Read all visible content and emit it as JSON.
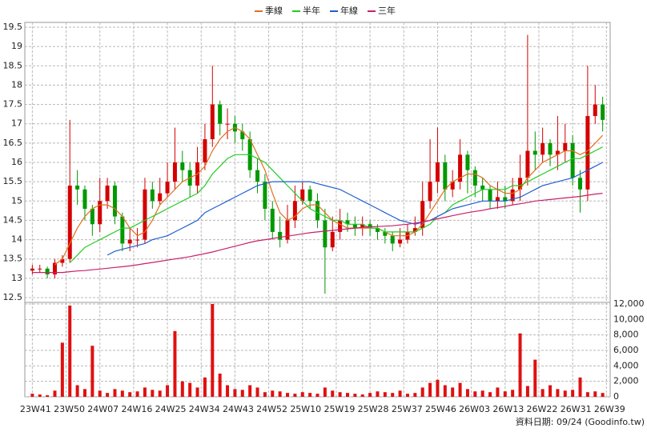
{
  "chart_data": [
    {
      "type": "candlestick",
      "x": [
        0,
        2,
        4,
        6,
        8,
        10,
        12,
        14,
        16,
        18,
        20,
        22,
        24,
        26,
        28,
        30,
        32,
        34,
        36,
        38,
        40,
        42,
        44,
        46,
        48,
        50,
        52,
        54,
        56,
        58,
        60,
        62,
        64,
        66,
        68,
        70,
        72,
        74,
        76,
        78,
        80,
        82,
        84,
        86,
        88,
        90,
        92,
        94,
        96,
        98,
        100,
        102,
        104,
        106,
        108,
        110,
        112,
        114,
        116,
        118,
        120,
        122,
        124,
        126,
        128,
        130,
        132,
        134,
        136,
        138,
        140,
        142,
        144,
        146,
        148,
        150,
        152
      ],
      "open": [
        13.2,
        13.25,
        13.25,
        13.1,
        13.4,
        13.5,
        15.4,
        15.3,
        14.8,
        14.4,
        15.0,
        15.4,
        14.6,
        13.9,
        14.0,
        14.0,
        15.3,
        15.0,
        15.2,
        15.5,
        16.0,
        15.8,
        15.4,
        16.0,
        16.6,
        17.5,
        17.0,
        17.0,
        16.8,
        16.6,
        15.8,
        15.5,
        14.8,
        14.2,
        14.0,
        14.5,
        15.0,
        15.3,
        15.0,
        14.5,
        13.8,
        14.2,
        14.5,
        14.4,
        14.3,
        14.4,
        14.3,
        14.2,
        14.1,
        13.9,
        14.0,
        14.2,
        14.3,
        15.0,
        15.5,
        16.0,
        15.3,
        15.5,
        16.2,
        15.8,
        15.4,
        15.3,
        15.0,
        15.1,
        15.0,
        15.3,
        15.6,
        16.3,
        16.2,
        16.5,
        16.2,
        16.3,
        16.5,
        15.6,
        15.3,
        17.2,
        17.5
      ],
      "high": [
        13.35,
        13.35,
        13.3,
        13.5,
        13.6,
        17.1,
        15.8,
        15.4,
        14.9,
        15.6,
        15.6,
        15.5,
        14.7,
        14.3,
        14.3,
        15.6,
        15.5,
        15.6,
        16.0,
        16.9,
        16.3,
        16.0,
        16.4,
        17.0,
        18.5,
        17.6,
        17.4,
        17.2,
        17.0,
        16.8,
        16.1,
        15.7,
        15.0,
        14.6,
        14.9,
        15.4,
        15.5,
        15.4,
        15.2,
        14.8,
        14.6,
        14.8,
        14.7,
        14.6,
        14.6,
        14.5,
        14.4,
        14.3,
        14.2,
        14.3,
        14.4,
        14.6,
        15.5,
        16.6,
        16.9,
        16.2,
        15.8,
        16.6,
        16.3,
        15.9,
        15.6,
        15.4,
        15.5,
        15.4,
        15.6,
        16.2,
        19.3,
        16.8,
        16.9,
        16.6,
        17.2,
        17.0,
        16.7,
        15.8,
        18.5,
        18.0,
        17.7
      ],
      "low": [
        13.1,
        13.15,
        13.0,
        13.0,
        13.3,
        13.4,
        14.9,
        14.5,
        14.1,
        14.2,
        14.8,
        14.4,
        13.7,
        13.7,
        13.8,
        13.9,
        14.8,
        14.9,
        15.1,
        15.3,
        15.5,
        15.1,
        15.2,
        15.8,
        16.4,
        16.7,
        16.6,
        16.5,
        16.3,
        15.6,
        15.2,
        14.5,
        14.0,
        13.8,
        13.9,
        14.3,
        14.9,
        14.8,
        14.3,
        12.6,
        13.7,
        14.0,
        14.2,
        14.1,
        14.1,
        14.1,
        14.0,
        13.9,
        13.7,
        13.8,
        13.9,
        14.1,
        14.1,
        14.8,
        15.2,
        15.0,
        15.1,
        15.3,
        15.2,
        15.1,
        15.0,
        14.8,
        14.8,
        14.8,
        14.9,
        15.0,
        15.4,
        15.8,
        16.0,
        15.9,
        15.8,
        16.0,
        15.4,
        14.7,
        15.0,
        17.0,
        16.8
      ],
      "close": [
        13.25,
        13.25,
        13.1,
        13.4,
        13.5,
        15.4,
        15.3,
        14.8,
        14.4,
        15.0,
        15.4,
        14.6,
        13.9,
        14.0,
        14.0,
        15.3,
        15.0,
        15.2,
        15.5,
        16.0,
        15.8,
        15.4,
        16.0,
        16.6,
        17.5,
        17.0,
        17.0,
        16.8,
        16.6,
        15.8,
        15.5,
        14.8,
        14.2,
        14.0,
        14.5,
        15.0,
        15.3,
        15.0,
        14.5,
        13.8,
        14.2,
        14.5,
        14.4,
        14.3,
        14.4,
        14.3,
        14.2,
        14.1,
        13.9,
        14.0,
        14.2,
        14.3,
        15.0,
        15.5,
        16.0,
        15.3,
        15.5,
        16.2,
        15.8,
        15.4,
        15.3,
        15.0,
        15.1,
        15.0,
        15.3,
        15.6,
        16.3,
        16.2,
        16.5,
        16.2,
        16.3,
        16.5,
        15.6,
        15.3,
        17.2,
        17.5,
        17.1
      ],
      "up_color": "#d40000",
      "down_color": "#009900",
      "lines": [
        {
          "name": "季線",
          "color": "#e07020",
          "values": [
            null,
            null,
            null,
            13.35,
            13.5,
            13.9,
            14.3,
            14.6,
            14.8,
            14.9,
            14.9,
            14.8,
            14.6,
            14.3,
            14.1,
            14.2,
            14.5,
            14.9,
            15.1,
            15.3,
            15.5,
            15.6,
            15.7,
            15.9,
            16.3,
            16.6,
            16.8,
            16.9,
            16.8,
            16.6,
            16.2,
            15.8,
            15.2,
            14.7,
            14.5,
            14.6,
            14.8,
            14.9,
            14.9,
            14.7,
            14.5,
            14.4,
            14.3,
            14.3,
            14.3,
            14.3,
            14.3,
            14.2,
            14.1,
            14.1,
            14.1,
            14.2,
            14.4,
            14.7,
            15.0,
            15.3,
            15.5,
            15.6,
            15.7,
            15.7,
            15.6,
            15.4,
            15.3,
            15.2,
            15.2,
            15.3,
            15.6,
            15.8,
            16.0,
            16.1,
            16.2,
            16.3,
            16.3,
            16.2,
            16.3,
            16.5,
            16.7
          ]
        },
        {
          "name": "半年",
          "color": "#22cc22",
          "values": [
            null,
            null,
            null,
            null,
            null,
            13.4,
            13.6,
            13.8,
            13.9,
            14.0,
            14.1,
            14.2,
            14.3,
            14.3,
            14.4,
            14.5,
            14.6,
            14.7,
            14.8,
            14.9,
            15.0,
            15.1,
            15.2,
            15.4,
            15.7,
            15.9,
            16.1,
            16.2,
            16.2,
            16.2,
            16.1,
            16.0,
            15.8,
            15.6,
            15.4,
            15.2,
            15.0,
            14.8,
            14.7,
            14.6,
            14.5,
            14.5,
            14.4,
            14.4,
            14.4,
            14.3,
            14.3,
            14.2,
            14.2,
            14.2,
            14.2,
            14.2,
            14.3,
            14.4,
            14.6,
            14.7,
            14.9,
            15.0,
            15.1,
            15.2,
            15.3,
            15.3,
            15.3,
            15.3,
            15.4,
            15.4,
            15.5,
            15.6,
            15.7,
            15.8,
            15.9,
            16.0,
            16.1,
            16.1,
            16.2,
            16.3,
            16.4
          ]
        },
        {
          "name": "年線",
          "color": "#1f5fd0",
          "values": [
            null,
            null,
            null,
            null,
            null,
            null,
            null,
            null,
            null,
            null,
            13.6,
            13.7,
            13.75,
            13.8,
            13.85,
            13.9,
            14.0,
            14.05,
            14.1,
            14.2,
            14.3,
            14.4,
            14.5,
            14.7,
            14.8,
            14.9,
            15.0,
            15.1,
            15.2,
            15.3,
            15.4,
            15.45,
            15.5,
            15.5,
            15.5,
            15.5,
            15.5,
            15.5,
            15.45,
            15.4,
            15.35,
            15.3,
            15.2,
            15.1,
            15.0,
            14.9,
            14.8,
            14.7,
            14.6,
            14.5,
            14.45,
            14.4,
            14.45,
            14.5,
            14.6,
            14.7,
            14.8,
            14.85,
            14.9,
            14.95,
            15.0,
            15.0,
            15.0,
            15.0,
            15.05,
            15.1,
            15.2,
            15.3,
            15.4,
            15.45,
            15.5,
            15.55,
            15.6,
            15.7,
            15.8,
            15.9,
            16.0
          ]
        },
        {
          "name": "三年",
          "color": "#c8206a",
          "values": [
            13.15,
            13.15,
            13.15,
            13.15,
            13.15,
            13.17,
            13.19,
            13.2,
            13.22,
            13.24,
            13.26,
            13.28,
            13.3,
            13.32,
            13.35,
            13.38,
            13.41,
            13.44,
            13.47,
            13.5,
            13.53,
            13.56,
            13.6,
            13.64,
            13.68,
            13.73,
            13.78,
            13.83,
            13.88,
            13.93,
            13.97,
            14.0,
            14.03,
            14.06,
            14.09,
            14.12,
            14.15,
            14.18,
            14.2,
            14.22,
            14.24,
            14.26,
            14.28,
            14.3,
            14.32,
            14.33,
            14.34,
            14.35,
            14.36,
            14.38,
            14.4,
            14.43,
            14.46,
            14.5,
            14.54,
            14.58,
            14.62,
            14.66,
            14.7,
            14.73,
            14.76,
            14.8,
            14.83,
            14.86,
            14.9,
            14.93,
            14.96,
            15.0,
            15.02,
            15.04,
            15.06,
            15.08,
            15.1,
            15.12,
            15.15,
            15.18,
            15.2
          ]
        }
      ],
      "ylim": [
        12.5,
        19.5
      ],
      "yticks": [
        12.5,
        13,
        13.5,
        14,
        14.5,
        15,
        15.5,
        16,
        16.5,
        17,
        17.5,
        18,
        18.5,
        19,
        19.5
      ],
      "grid": true
    },
    {
      "type": "bar",
      "color": "#e01010",
      "x": [
        0,
        2,
        4,
        6,
        8,
        10,
        12,
        14,
        16,
        18,
        20,
        22,
        24,
        26,
        28,
        30,
        32,
        34,
        36,
        38,
        40,
        42,
        44,
        46,
        48,
        50,
        52,
        54,
        56,
        58,
        60,
        62,
        64,
        66,
        68,
        70,
        72,
        74,
        76,
        78,
        80,
        82,
        84,
        86,
        88,
        90,
        92,
        94,
        96,
        98,
        100,
        102,
        104,
        106,
        108,
        110,
        112,
        114,
        116,
        118,
        120,
        122,
        124,
        126,
        128,
        130,
        132,
        134,
        136,
        138,
        140,
        142,
        144,
        146,
        148,
        150,
        152
      ],
      "values": [
        400,
        300,
        200,
        800,
        7000,
        11800,
        1500,
        1000,
        6600,
        800,
        500,
        1000,
        800,
        600,
        700,
        1200,
        900,
        800,
        1500,
        8500,
        2000,
        1800,
        1200,
        2500,
        12000,
        3000,
        1500,
        1000,
        900,
        1500,
        1200,
        600,
        800,
        700,
        500,
        400,
        600,
        500,
        400,
        1200,
        800,
        600,
        500,
        400,
        300,
        500,
        700,
        600,
        500,
        800,
        400,
        500,
        1200,
        1800,
        2200,
        1500,
        1200,
        1800,
        1000,
        700,
        800,
        600,
        1200,
        700,
        900,
        8200,
        1400,
        4800,
        1000,
        1500,
        1000,
        800,
        900,
        2500,
        600,
        700,
        500
      ],
      "ylim": [
        0,
        12000
      ],
      "yticks": [
        0,
        {
          "value": 2000,
          "label": "2,000"
        },
        {
          "value": 4000,
          "label": "4,000"
        },
        {
          "value": 6000,
          "label": "6,000"
        },
        {
          "value": 8000,
          "label": "8,000"
        },
        {
          "value": 10000,
          "label": "10,000"
        },
        {
          "value": 12000,
          "label": "12,000"
        }
      ],
      "xlim": [
        -2,
        154
      ],
      "xticks": [
        {
          "value": 0,
          "label": "23W41"
        },
        {
          "value": 9,
          "label": "23W50"
        },
        {
          "value": 18,
          "label": "24W07"
        },
        {
          "value": 27,
          "label": "24W16"
        },
        {
          "value": 36,
          "label": "24W25"
        },
        {
          "value": 45,
          "label": "24W34"
        },
        {
          "value": 54,
          "label": "24W43"
        },
        {
          "value": 63,
          "label": "24W52"
        },
        {
          "value": 72,
          "label": "25W10"
        },
        {
          "value": 81,
          "label": "25W19"
        },
        {
          "value": 90,
          "label": "25W28"
        },
        {
          "value": 99,
          "label": "25W37"
        },
        {
          "value": 108,
          "label": "25W46"
        },
        {
          "value": 117,
          "label": "26W03"
        },
        {
          "value": 126,
          "label": "26W13"
        },
        {
          "value": 135,
          "label": "26W22"
        },
        {
          "value": 144,
          "label": "26W31"
        },
        {
          "value": 153,
          "label": "26W39"
        }
      ],
      "grid": true
    }
  ],
  "footer": "資料日期: 09/24 (Goodinfo.tw)"
}
